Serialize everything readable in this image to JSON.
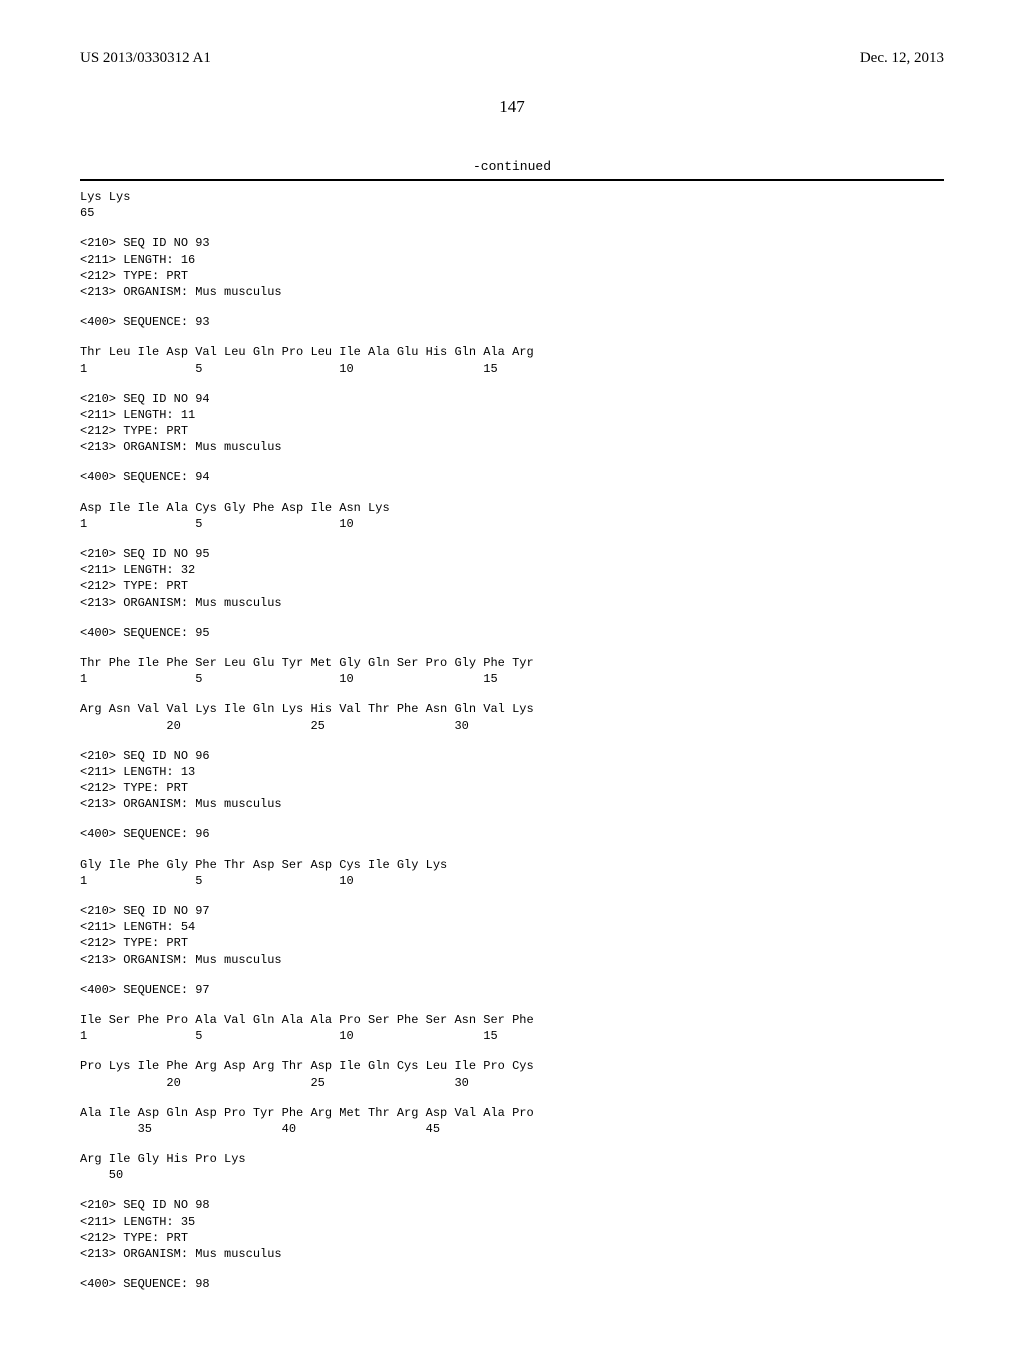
{
  "header": {
    "pub_number": "US 2013/0330312 A1",
    "pub_date": "Dec. 12, 2013"
  },
  "page_number": "147",
  "continued_label": "-continued",
  "blocks": [
    {
      "lines": [
        "Lys Lys",
        "65"
      ]
    },
    {
      "lines": [
        "<210> SEQ ID NO 93",
        "<211> LENGTH: 16",
        "<212> TYPE: PRT",
        "<213> ORGANISM: Mus musculus"
      ]
    },
    {
      "lines": [
        "<400> SEQUENCE: 93"
      ]
    },
    {
      "lines": [
        "Thr Leu Ile Asp Val Leu Gln Pro Leu Ile Ala Glu His Gln Ala Arg",
        "1               5                   10                  15"
      ]
    },
    {
      "lines": [
        "<210> SEQ ID NO 94",
        "<211> LENGTH: 11",
        "<212> TYPE: PRT",
        "<213> ORGANISM: Mus musculus"
      ]
    },
    {
      "lines": [
        "<400> SEQUENCE: 94"
      ]
    },
    {
      "lines": [
        "Asp Ile Ile Ala Cys Gly Phe Asp Ile Asn Lys",
        "1               5                   10"
      ]
    },
    {
      "lines": [
        "<210> SEQ ID NO 95",
        "<211> LENGTH: 32",
        "<212> TYPE: PRT",
        "<213> ORGANISM: Mus musculus"
      ]
    },
    {
      "lines": [
        "<400> SEQUENCE: 95"
      ]
    },
    {
      "lines": [
        "Thr Phe Ile Phe Ser Leu Glu Tyr Met Gly Gln Ser Pro Gly Phe Tyr",
        "1               5                   10                  15"
      ]
    },
    {
      "lines": [
        "Arg Asn Val Val Lys Ile Gln Lys His Val Thr Phe Asn Gln Val Lys",
        "            20                  25                  30"
      ]
    },
    {
      "lines": [
        "<210> SEQ ID NO 96",
        "<211> LENGTH: 13",
        "<212> TYPE: PRT",
        "<213> ORGANISM: Mus musculus"
      ]
    },
    {
      "lines": [
        "<400> SEQUENCE: 96"
      ]
    },
    {
      "lines": [
        "Gly Ile Phe Gly Phe Thr Asp Ser Asp Cys Ile Gly Lys",
        "1               5                   10"
      ]
    },
    {
      "lines": [
        "<210> SEQ ID NO 97",
        "<211> LENGTH: 54",
        "<212> TYPE: PRT",
        "<213> ORGANISM: Mus musculus"
      ]
    },
    {
      "lines": [
        "<400> SEQUENCE: 97"
      ]
    },
    {
      "lines": [
        "Ile Ser Phe Pro Ala Val Gln Ala Ala Pro Ser Phe Ser Asn Ser Phe",
        "1               5                   10                  15"
      ]
    },
    {
      "lines": [
        "Pro Lys Ile Phe Arg Asp Arg Thr Asp Ile Gln Cys Leu Ile Pro Cys",
        "            20                  25                  30"
      ]
    },
    {
      "lines": [
        "Ala Ile Asp Gln Asp Pro Tyr Phe Arg Met Thr Arg Asp Val Ala Pro",
        "        35                  40                  45"
      ]
    },
    {
      "lines": [
        "Arg Ile Gly His Pro Lys",
        "    50"
      ]
    },
    {
      "lines": [
        "<210> SEQ ID NO 98",
        "<211> LENGTH: 35",
        "<212> TYPE: PRT",
        "<213> ORGANISM: Mus musculus"
      ]
    },
    {
      "lines": [
        "<400> SEQUENCE: 98"
      ]
    }
  ]
}
